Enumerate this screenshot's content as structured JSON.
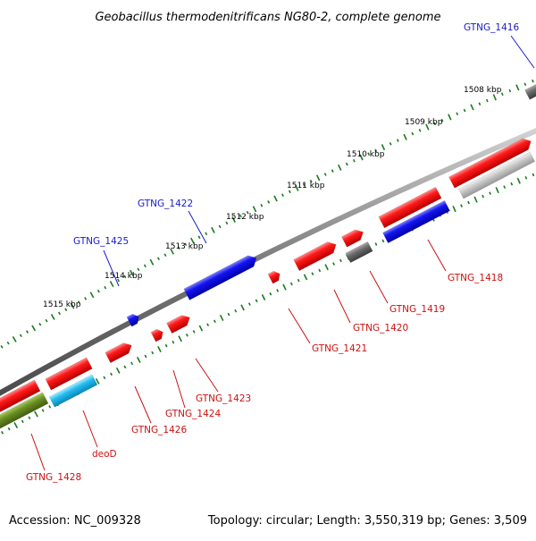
{
  "title": "Geobacillus thermodenitrificans NG80-2, complete genome",
  "footer": {
    "accession": "Accession: NC_009328",
    "topology": "Topology: circular; Length: 3,550,319 bp; Genes: 3,509"
  },
  "colors": {
    "red": "#ee1111",
    "blue": "#1111ee",
    "gray": "#666666",
    "lightgray": "#c4c4c4",
    "cyan": "#22bbee",
    "olive": "#6a8f22",
    "tick_green": "#1a7a1a",
    "backbone": "#777777",
    "label_blue": "#1a1acc",
    "label_red": "#cc1111"
  },
  "kbp_labels": [
    "1508 kbp",
    "1509 kbp",
    "1510 kbp",
    "1511 kbp",
    "1512 kbp",
    "1513 kbp",
    "1514 kbp",
    "1515 kbp"
  ],
  "gene_labels": [
    {
      "id": "GTNG_1416",
      "text": "GTNG_1416",
      "color": "blue"
    },
    {
      "id": "GTNG_1418",
      "text": "GTNG_1418",
      "color": "red"
    },
    {
      "id": "GTNG_1419",
      "text": "GTNG_1419",
      "color": "red"
    },
    {
      "id": "GTNG_1420",
      "text": "GTNG_1420",
      "color": "red"
    },
    {
      "id": "GTNG_1421",
      "text": "GTNG_1421",
      "color": "red"
    },
    {
      "id": "GTNG_1422",
      "text": "GTNG_1422",
      "color": "blue"
    },
    {
      "id": "GTNG_1423",
      "text": "GTNG_1423",
      "color": "red"
    },
    {
      "id": "GTNG_1424",
      "text": "GTNG_1424",
      "color": "red"
    },
    {
      "id": "GTNG_1425",
      "text": "GTNG_1425",
      "color": "blue"
    },
    {
      "id": "GTNG_1426",
      "text": "GTNG_1426",
      "color": "red"
    },
    {
      "id": "deoD",
      "text": "deoD",
      "color": "red"
    },
    {
      "id": "GTNG_1428",
      "text": "GTNG_1428",
      "color": "red"
    }
  ]
}
